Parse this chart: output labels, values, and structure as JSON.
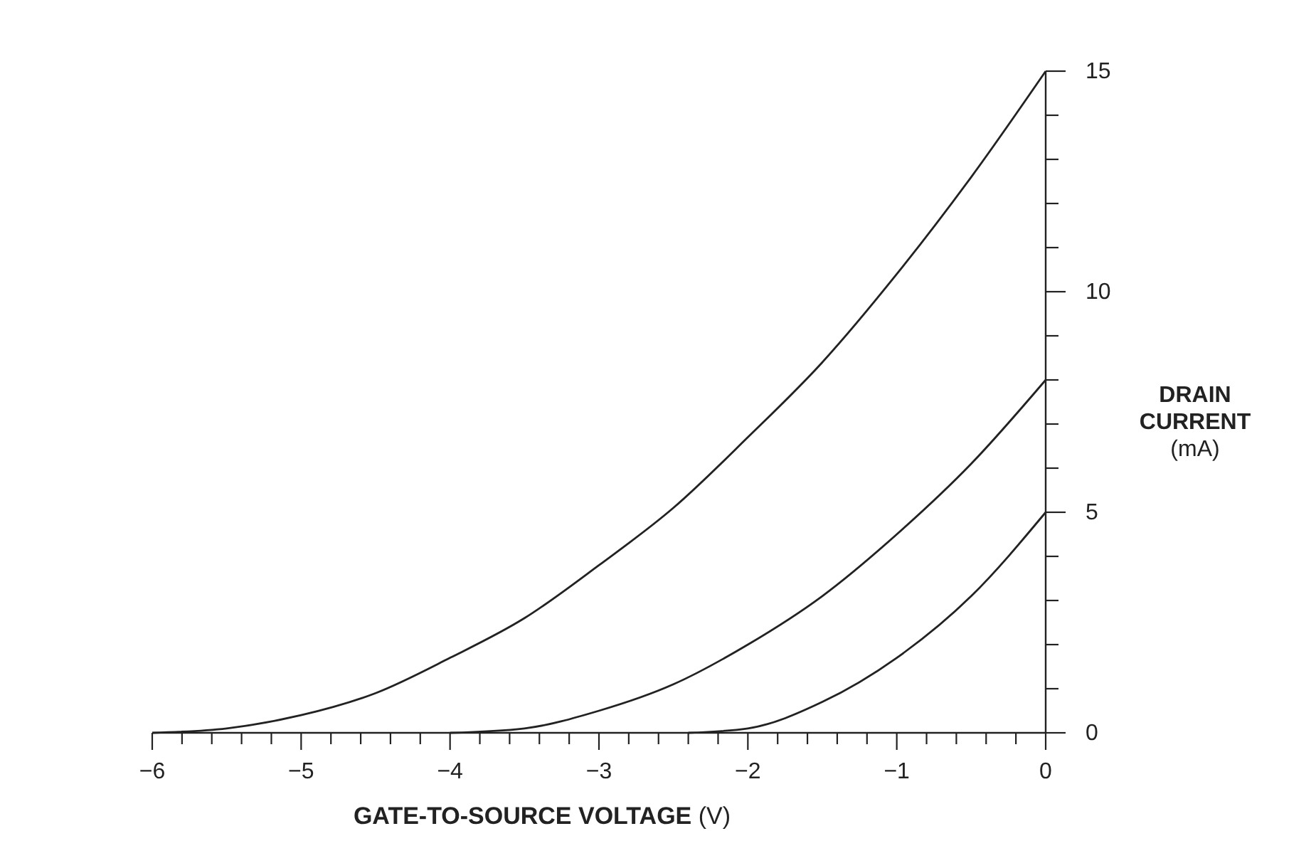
{
  "chart_data": {
    "type": "line",
    "xlabel": "GATE-TO-SOURCE VOLTAGE (V)",
    "ylabel": "DRAIN CURRENT (mA)",
    "xlim": [
      -6,
      0
    ],
    "ylim": [
      0,
      15
    ],
    "xticks": [
      -6,
      {
        "value": -5.8,
        "label": null
      },
      {
        "value": -5.6,
        "label": null
      },
      {
        "value": -5.4,
        "label": null
      },
      {
        "value": -5.2,
        "label": null
      },
      -5,
      {
        "value": -4.8,
        "label": null
      },
      {
        "value": -4.6,
        "label": null
      },
      {
        "value": -4.4,
        "label": null
      },
      {
        "value": -4.2,
        "label": null
      },
      -4,
      {
        "value": -3.8,
        "label": null
      },
      {
        "value": -3.6,
        "label": null
      },
      {
        "value": -3.4,
        "label": null
      },
      {
        "value": -3.2,
        "label": null
      },
      -3,
      {
        "value": -2.8,
        "label": null
      },
      {
        "value": -2.6,
        "label": null
      },
      {
        "value": -2.4,
        "label": null
      },
      {
        "value": -2.2,
        "label": null
      },
      -2,
      {
        "value": -1.8,
        "label": null
      },
      {
        "value": -1.6,
        "label": null
      },
      {
        "value": -1.4,
        "label": null
      },
      {
        "value": -1.2,
        "label": null
      },
      -1,
      {
        "value": -0.8,
        "label": null
      },
      {
        "value": -0.6,
        "label": null
      },
      {
        "value": -0.4,
        "label": null
      },
      {
        "value": -0.2,
        "label": null
      },
      0
    ],
    "yticks": [
      0,
      {
        "value": 1,
        "label": null
      },
      {
        "value": 2,
        "label": null
      },
      {
        "value": 3,
        "label": null
      },
      {
        "value": 4,
        "label": null
      },
      5,
      {
        "value": 6,
        "label": null
      },
      {
        "value": 7,
        "label": null
      },
      {
        "value": 8,
        "label": null
      },
      {
        "value": 9,
        "label": null
      },
      10,
      {
        "value": 11,
        "label": null
      },
      {
        "value": 12,
        "label": null
      },
      {
        "value": 13,
        "label": null
      },
      {
        "value": 14,
        "label": null
      },
      15
    ],
    "grid": false,
    "marker": "none",
    "line_style": "solid",
    "series": [
      {
        "color": "#222222",
        "x": [
          -6,
          -5.5,
          -5,
          -4.5,
          -4,
          -3.5,
          -3,
          -2.5,
          -2,
          -1.5,
          -1,
          -0.5,
          0
        ],
        "values": [
          0,
          0.1,
          0.4,
          0.9,
          1.7,
          2.6,
          3.8,
          5.1,
          6.7,
          8.4,
          10.4,
          12.6,
          15
        ]
      },
      {
        "color": "#222222",
        "x": [
          -4,
          -3.5,
          -3,
          -2.5,
          -2,
          -1.5,
          -1,
          -0.5,
          0
        ],
        "values": [
          0,
          0.1,
          0.5,
          1.1,
          2,
          3.1,
          4.5,
          6.1,
          8
        ]
      },
      {
        "color": "#222222",
        "x": [
          -2.4,
          -2,
          -1.5,
          -1,
          -0.5,
          0
        ],
        "values": [
          0,
          0.1,
          0.7,
          1.7,
          3.1,
          5
        ]
      }
    ]
  }
}
